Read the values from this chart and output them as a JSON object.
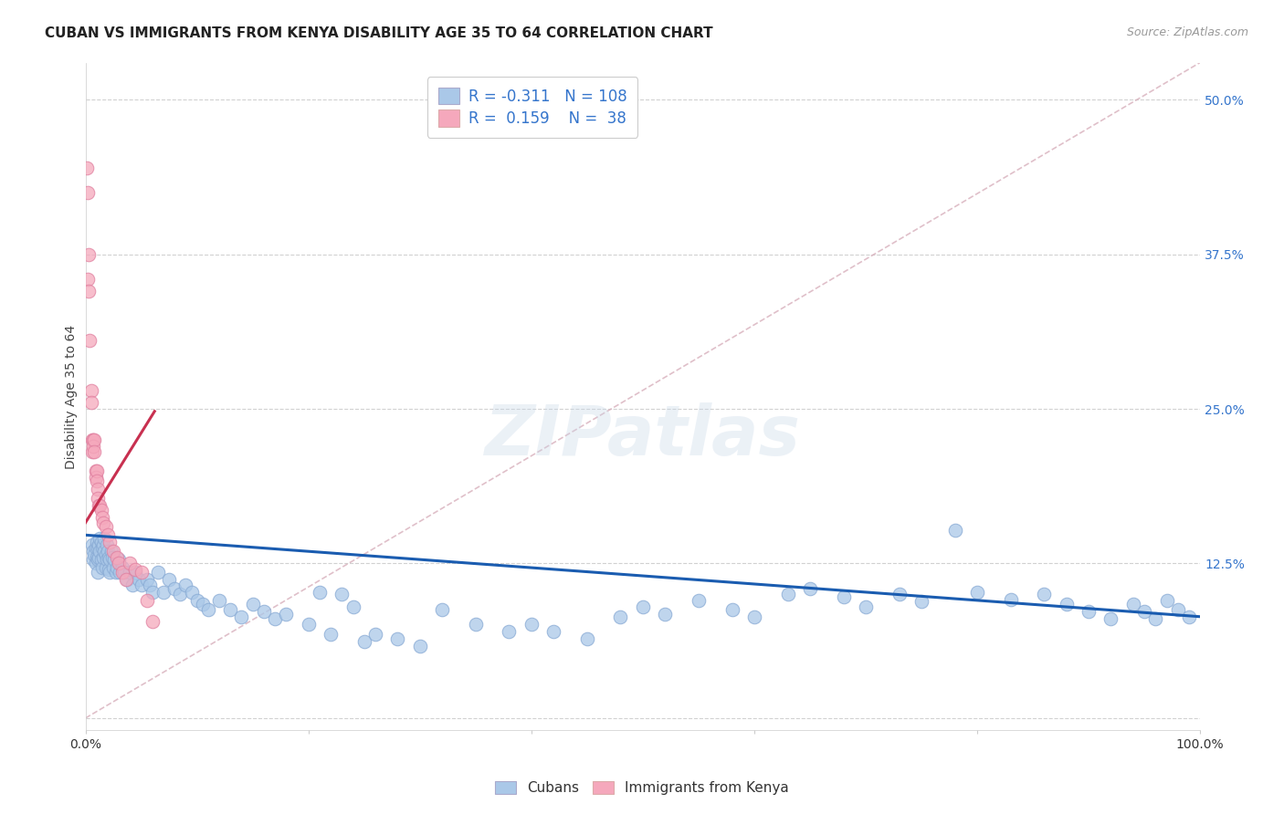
{
  "title": "CUBAN VS IMMIGRANTS FROM KENYA DISABILITY AGE 35 TO 64 CORRELATION CHART",
  "source": "Source: ZipAtlas.com",
  "ylabel": "Disability Age 35 to 64",
  "yticks": [
    0.0,
    0.125,
    0.25,
    0.375,
    0.5
  ],
  "ytick_labels": [
    "",
    "12.5%",
    "25.0%",
    "37.5%",
    "50.0%"
  ],
  "xtick_vals": [
    0.0,
    0.2,
    0.4,
    0.6,
    0.8,
    1.0
  ],
  "xtick_labels": [
    "0.0%",
    "",
    "",
    "",
    "",
    "100.0%"
  ],
  "xmin": 0.0,
  "xmax": 1.0,
  "ymin": -0.01,
  "ymax": 0.53,
  "legend_r_cubans": "-0.311",
  "legend_n_cubans": "108",
  "legend_r_kenya": "0.159",
  "legend_n_kenya": "38",
  "color_cubans": "#aac8e8",
  "color_kenya": "#f5a8bc",
  "trendline_cubans_color": "#1a5cb0",
  "trendline_kenya_color": "#c83050",
  "trendline_diag_color": "#d8b0bc",
  "background_color": "#ffffff",
  "grid_color": "#cccccc",
  "watermark": "ZIPatlas",
  "cubans_x": [
    0.006,
    0.007,
    0.007,
    0.008,
    0.009,
    0.009,
    0.01,
    0.01,
    0.011,
    0.011,
    0.011,
    0.012,
    0.012,
    0.013,
    0.013,
    0.014,
    0.014,
    0.015,
    0.015,
    0.016,
    0.016,
    0.017,
    0.017,
    0.018,
    0.018,
    0.019,
    0.019,
    0.02,
    0.021,
    0.021,
    0.022,
    0.022,
    0.023,
    0.024,
    0.025,
    0.026,
    0.027,
    0.028,
    0.03,
    0.031,
    0.033,
    0.035,
    0.037,
    0.04,
    0.042,
    0.045,
    0.048,
    0.05,
    0.055,
    0.058,
    0.06,
    0.065,
    0.07,
    0.075,
    0.08,
    0.085,
    0.09,
    0.095,
    0.1,
    0.105,
    0.11,
    0.12,
    0.13,
    0.14,
    0.15,
    0.16,
    0.17,
    0.18,
    0.2,
    0.21,
    0.22,
    0.23,
    0.24,
    0.25,
    0.26,
    0.28,
    0.3,
    0.32,
    0.35,
    0.38,
    0.4,
    0.42,
    0.45,
    0.48,
    0.5,
    0.52,
    0.55,
    0.58,
    0.6,
    0.63,
    0.65,
    0.68,
    0.7,
    0.73,
    0.75,
    0.78,
    0.8,
    0.83,
    0.86,
    0.88,
    0.9,
    0.92,
    0.94,
    0.95,
    0.96,
    0.97,
    0.98,
    0.99
  ],
  "cubans_y": [
    0.14,
    0.135,
    0.128,
    0.132,
    0.138,
    0.125,
    0.142,
    0.13,
    0.138,
    0.128,
    0.118,
    0.14,
    0.13,
    0.145,
    0.135,
    0.142,
    0.128,
    0.138,
    0.122,
    0.14,
    0.13,
    0.145,
    0.135,
    0.132,
    0.122,
    0.14,
    0.128,
    0.135,
    0.13,
    0.12,
    0.128,
    0.118,
    0.135,
    0.13,
    0.122,
    0.128,
    0.118,
    0.122,
    0.128,
    0.118,
    0.122,
    0.118,
    0.112,
    0.118,
    0.108,
    0.118,
    0.112,
    0.108,
    0.112,
    0.108,
    0.102,
    0.118,
    0.102,
    0.112,
    0.105,
    0.1,
    0.108,
    0.102,
    0.095,
    0.092,
    0.088,
    0.095,
    0.088,
    0.082,
    0.092,
    0.086,
    0.08,
    0.084,
    0.076,
    0.102,
    0.068,
    0.1,
    0.09,
    0.062,
    0.068,
    0.064,
    0.058,
    0.088,
    0.076,
    0.07,
    0.076,
    0.07,
    0.064,
    0.082,
    0.09,
    0.084,
    0.095,
    0.088,
    0.082,
    0.1,
    0.105,
    0.098,
    0.09,
    0.1,
    0.094,
    0.152,
    0.102,
    0.096,
    0.1,
    0.092,
    0.086,
    0.08,
    0.092,
    0.086,
    0.08,
    0.095,
    0.088,
    0.082
  ],
  "kenya_x": [
    0.001,
    0.002,
    0.002,
    0.003,
    0.003,
    0.004,
    0.005,
    0.005,
    0.006,
    0.006,
    0.007,
    0.007,
    0.008,
    0.008,
    0.009,
    0.009,
    0.01,
    0.01,
    0.011,
    0.011,
    0.012,
    0.013,
    0.014,
    0.015,
    0.016,
    0.018,
    0.02,
    0.022,
    0.025,
    0.028,
    0.03,
    0.033,
    0.036,
    0.04,
    0.045,
    0.05,
    0.055,
    0.06
  ],
  "kenya_y": [
    0.445,
    0.425,
    0.355,
    0.345,
    0.375,
    0.305,
    0.265,
    0.255,
    0.225,
    0.215,
    0.225,
    0.22,
    0.225,
    0.215,
    0.2,
    0.195,
    0.2,
    0.192,
    0.185,
    0.178,
    0.172,
    0.172,
    0.168,
    0.162,
    0.158,
    0.155,
    0.148,
    0.142,
    0.135,
    0.13,
    0.125,
    0.118,
    0.112,
    0.125,
    0.12,
    0.118,
    0.095,
    0.078
  ],
  "trendline_cubans_x_start": 0.0,
  "trendline_cubans_x_end": 1.0,
  "trendline_cubans_y_start": 0.148,
  "trendline_cubans_y_end": 0.082,
  "trendline_kenya_x_start": 0.0,
  "trendline_kenya_x_end": 0.062,
  "trendline_kenya_y_start": 0.158,
  "trendline_kenya_y_end": 0.248,
  "trendline_diag_x_start": 0.0,
  "trendline_diag_x_end": 1.0,
  "trendline_diag_y_start": 0.0,
  "trendline_diag_y_end": 0.53,
  "title_fontsize": 11,
  "source_fontsize": 9,
  "legend_fontsize": 12,
  "axis_label_fontsize": 10,
  "tick_fontsize": 10
}
